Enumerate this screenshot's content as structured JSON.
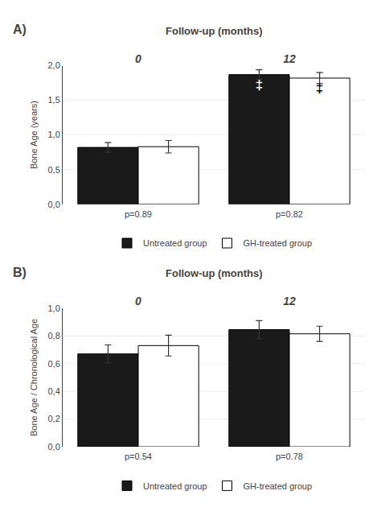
{
  "chart_data": [
    {
      "type": "bar",
      "title": "Follow-up (months)",
      "ylabel": "Bone Age (years)",
      "categories": [
        "0",
        "12"
      ],
      "series": [
        {
          "name": "Untreated group",
          "color": "#1a1a1a",
          "values": [
            0.82,
            1.87
          ],
          "errors": [
            0.07,
            0.07
          ]
        },
        {
          "name": "GH-treated group",
          "color": "#ffffff",
          "values": [
            0.83,
            1.82
          ],
          "errors": [
            0.09,
            0.08
          ]
        }
      ],
      "ylim": [
        0.0,
        2.0
      ],
      "yticks": [
        {
          "value": 0.0,
          "label": "0,0"
        },
        {
          "value": 0.5,
          "label": "0,5"
        },
        {
          "value": 1.0,
          "label": "1,0"
        },
        {
          "value": 1.5,
          "label": "1,5"
        },
        {
          "value": 2.0,
          "label": "2,0"
        }
      ],
      "grid": true,
      "legend": "bottom",
      "annotations": [
        {
          "text": "A)"
        },
        {
          "text": "p=0.89",
          "category": "0"
        },
        {
          "text": "p=0.82",
          "category": "12"
        },
        {
          "text": "‡",
          "category": "12",
          "series": "Untreated group"
        },
        {
          "text": "‡",
          "category": "12",
          "series": "GH-treated group"
        }
      ]
    },
    {
      "type": "bar",
      "title": "Follow-up (months)",
      "ylabel": "Bone Age / Chronological Age",
      "categories": [
        "0",
        "12"
      ],
      "series": [
        {
          "name": "Untreated group",
          "color": "#1a1a1a",
          "values": [
            0.67,
            0.845
          ],
          "errors": [
            0.065,
            0.065
          ]
        },
        {
          "name": "GH-treated group",
          "color": "#ffffff",
          "values": [
            0.73,
            0.815
          ],
          "errors": [
            0.075,
            0.055
          ]
        }
      ],
      "ylim": [
        0.0,
        1.0
      ],
      "yticks": [
        {
          "value": 0.0,
          "label": "0,0"
        },
        {
          "value": 0.2,
          "label": "0,2"
        },
        {
          "value": 0.4,
          "label": "0,4"
        },
        {
          "value": 0.6,
          "label": "0,6"
        },
        {
          "value": 0.8,
          "label": "0,8"
        },
        {
          "value": 1.0,
          "label": "1,0"
        }
      ],
      "grid": true,
      "legend": "bottom",
      "annotations": [
        {
          "text": "B)"
        },
        {
          "text": "p=0.54",
          "category": "0"
        },
        {
          "text": "p=0.78",
          "category": "12"
        }
      ]
    }
  ]
}
